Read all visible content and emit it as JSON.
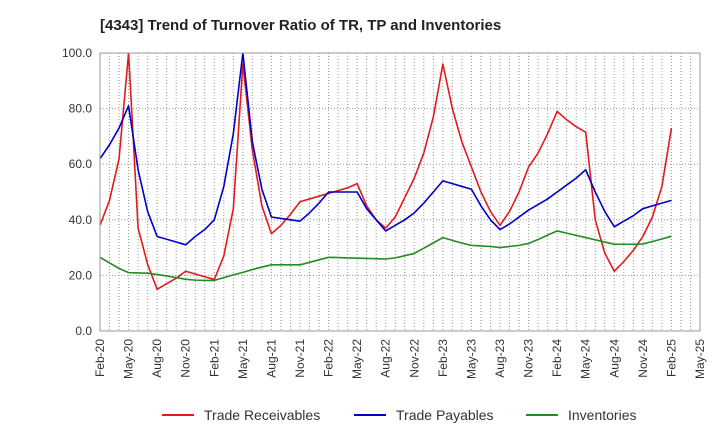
{
  "chart_data": {
    "type": "line",
    "title": "[4343]  Trend of Turnover Ratio of TR, TP and Inventories",
    "xlabel": "",
    "ylabel": "",
    "ylim": [
      0,
      100
    ],
    "y_ticks": [
      "0.0",
      "20.0",
      "40.0",
      "60.0",
      "80.0",
      "100.0"
    ],
    "x_tick_labels": [
      "Feb-20",
      "May-20",
      "Aug-20",
      "Nov-20",
      "Feb-21",
      "May-21",
      "Aug-21",
      "Nov-21",
      "Feb-22",
      "May-22",
      "Aug-22",
      "Nov-22",
      "Feb-23",
      "May-23",
      "Aug-23",
      "Nov-23",
      "Feb-24",
      "May-24",
      "Aug-24",
      "Nov-24",
      "Feb-25",
      "May-25"
    ],
    "x": [
      "Feb-20",
      "Mar-20",
      "Apr-20",
      "May-20",
      "Jun-20",
      "Jul-20",
      "Aug-20",
      "Sep-20",
      "Oct-20",
      "Nov-20",
      "Dec-20",
      "Jan-21",
      "Feb-21",
      "Mar-21",
      "Apr-21",
      "May-21",
      "Jun-21",
      "Jul-21",
      "Aug-21",
      "Sep-21",
      "Oct-21",
      "Nov-21",
      "Dec-21",
      "Jan-22",
      "Feb-22",
      "Mar-22",
      "Apr-22",
      "May-22",
      "Jun-22",
      "Jul-22",
      "Aug-22",
      "Sep-22",
      "Oct-22",
      "Nov-22",
      "Dec-22",
      "Jan-23",
      "Feb-23",
      "Mar-23",
      "Apr-23",
      "May-23",
      "Jun-23",
      "Jul-23",
      "Aug-23",
      "Sep-23",
      "Oct-23",
      "Nov-23",
      "Dec-23",
      "Jan-24",
      "Feb-24",
      "Mar-24",
      "Apr-24",
      "May-24",
      "Jun-24",
      "Jul-24",
      "Aug-24",
      "Sep-24",
      "Oct-24",
      "Nov-24",
      "Dec-24",
      "Jan-25",
      "Feb-25"
    ],
    "grid": {
      "x": true,
      "y": true
    },
    "legend_position": "bottom",
    "series": [
      {
        "name": "Trade Receivables",
        "color": "#e31a1c",
        "values": [
          38,
          47,
          62,
          100,
          37,
          24,
          15,
          17,
          19,
          21.5,
          20.5,
          19.5,
          18.5,
          27,
          44,
          96,
          65,
          45,
          35,
          38,
          42,
          46.5,
          47.5,
          48.5,
          49.5,
          50.5,
          51.5,
          53,
          45,
          40,
          37,
          41,
          48,
          55,
          64,
          77,
          96,
          80,
          68,
          59,
          50,
          43,
          38,
          43,
          50,
          59,
          64,
          71,
          79,
          76,
          73.5,
          71.5,
          40,
          28,
          21.5,
          25,
          29,
          34,
          41,
          52,
          73
        ]
      },
      {
        "name": "Trade Payables",
        "color": "#0000cc",
        "values": [
          62,
          67,
          73,
          81,
          58,
          43,
          34,
          33,
          32,
          31,
          34,
          36.5,
          40,
          52,
          71,
          100,
          68,
          51,
          41,
          40.5,
          40,
          39.5,
          42.5,
          46,
          50,
          50,
          50,
          50,
          44,
          40,
          36,
          38,
          40,
          42.5,
          46,
          50,
          54,
          53,
          52,
          51,
          45,
          40,
          36.5,
          38.5,
          41,
          43.5,
          45.5,
          47.5,
          50,
          52.5,
          55,
          58,
          50,
          43,
          37.5,
          39.5,
          41.5,
          44,
          45,
          46,
          47
        ]
      },
      {
        "name": "Inventories",
        "color": "#228b22",
        "values": [
          26.5,
          24.5,
          22.5,
          21,
          20.9,
          20.8,
          20.3,
          19.8,
          19.2,
          18.6,
          18.3,
          18.2,
          18.2,
          19.2,
          20.2,
          21.1,
          22.1,
          23,
          23.8,
          23.8,
          23.8,
          23.8,
          24.7,
          25.6,
          26.5,
          26.4,
          26.3,
          26.2,
          26.1,
          26,
          25.9,
          26.3,
          27.1,
          27.9,
          29.8,
          31.7,
          33.6,
          32.6,
          31.6,
          30.8,
          30.6,
          30.4,
          30,
          30.4,
          30.8,
          31.5,
          32.9,
          34.5,
          36,
          35.2,
          34.4,
          33.6,
          32.8,
          32,
          31.2,
          31.2,
          31.2,
          31.3,
          32.2,
          33.1,
          34.1
        ]
      }
    ]
  }
}
